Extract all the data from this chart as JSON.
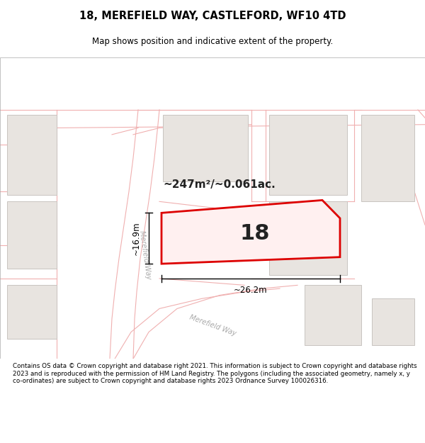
{
  "title": "18, MEREFIELD WAY, CASTLEFORD, WF10 4TD",
  "subtitle": "Map shows position and indicative extent of the property.",
  "area_text": "~247m²/~0.061ac.",
  "number_label": "18",
  "dim_width": "~26.2m",
  "dim_height": "~16.9m",
  "footer": "Contains OS data © Crown copyright and database right 2021. This information is subject to Crown copyright and database rights 2023 and is reproduced with the permission of HM Land Registry. The polygons (including the associated geometry, namely x, y co-ordinates) are subject to Crown copyright and database rights 2023 Ordnance Survey 100026316.",
  "map_bg": "#ffffff",
  "road_color": "#f5c5c5",
  "road_thin_color": "#f0b0b0",
  "building_fill": "#e8e4e0",
  "building_edge": "#c8c4c0",
  "highlight_fill": "#fff0f0",
  "highlight_stroke": "#dd0000",
  "label_color": "#c8a0a0",
  "road_label_color": "#aaaaaa",
  "title_color": "#000000",
  "footer_color": "#000000",
  "dim_color": "#000000",
  "white": "#ffffff"
}
